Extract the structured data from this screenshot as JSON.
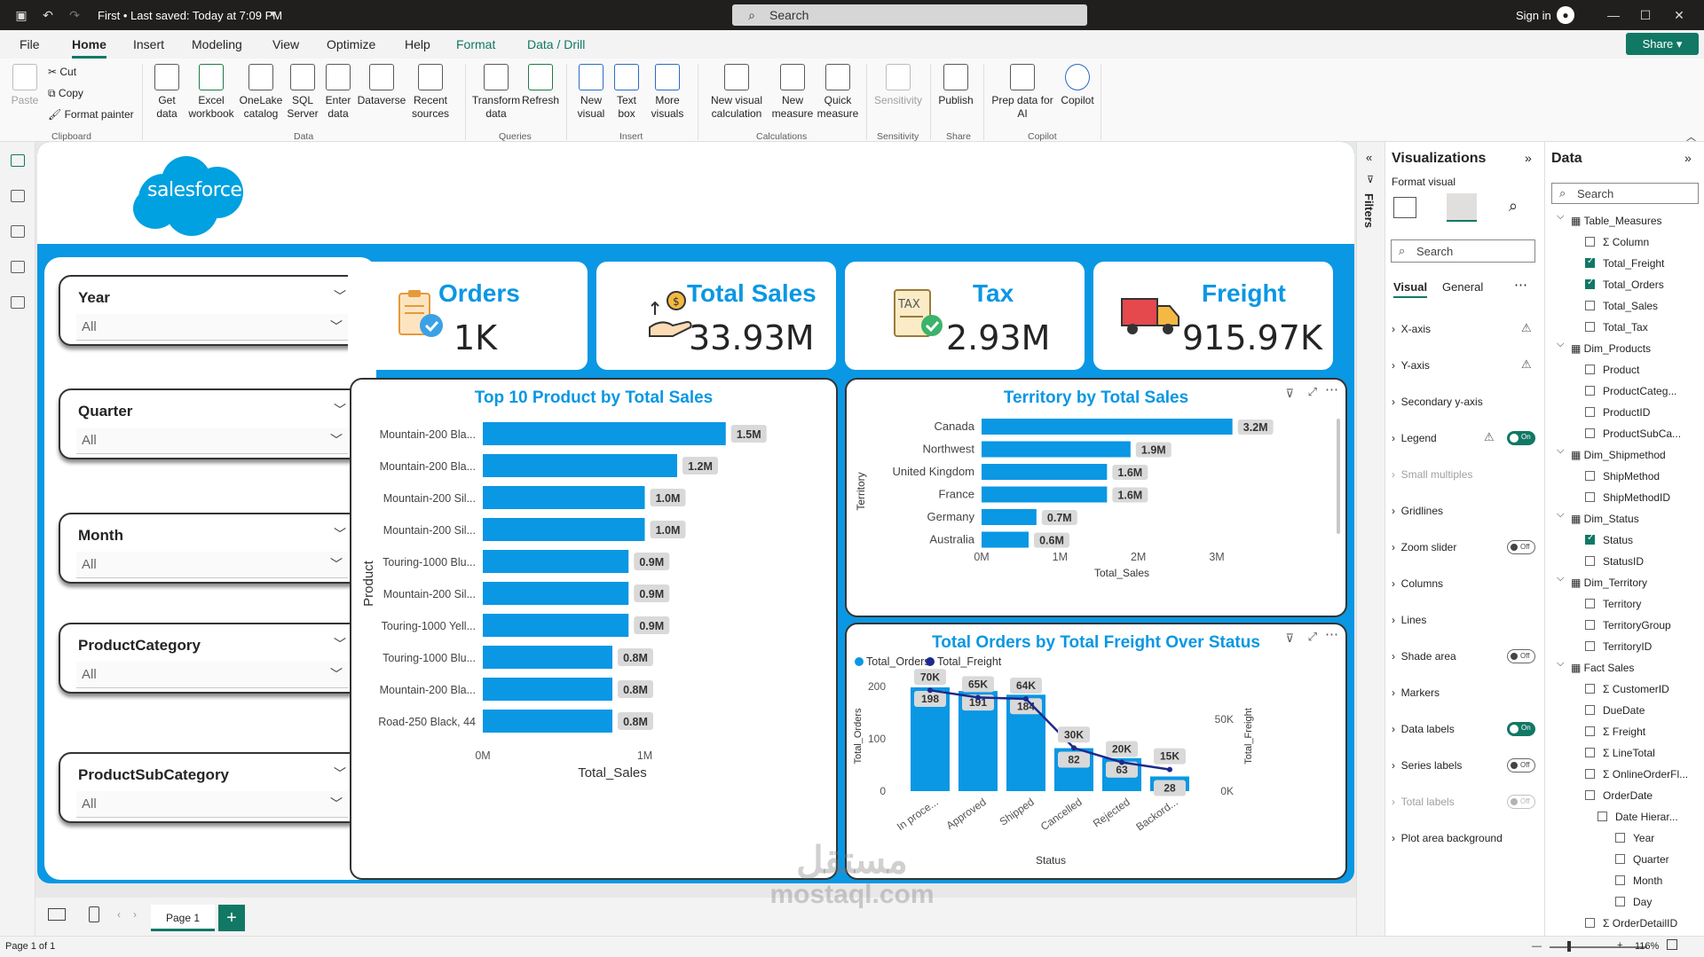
{
  "titlebar": {
    "title": "First • Last saved: Today at 7:09 PM",
    "search_placeholder": "Search",
    "signin": "Sign in"
  },
  "menu": [
    "File",
    "Home",
    "Insert",
    "Modeling",
    "View",
    "Optimize",
    "Help",
    "Format",
    "Data / Drill"
  ],
  "share_label": "Share",
  "ribbon": {
    "clipboard": {
      "paste": "Paste",
      "cut": "Cut",
      "copy": "Copy",
      "format_painter": "Format painter",
      "group": "Clipboard"
    },
    "data": {
      "items": [
        "Get data",
        "Excel workbook",
        "OneLake catalog",
        "SQL Server",
        "Enter data",
        "Dataverse",
        "Recent sources"
      ],
      "group": "Data"
    },
    "queries": {
      "items": [
        "Transform data",
        "Refresh"
      ],
      "group": "Queries"
    },
    "insert": {
      "items": [
        "New visual",
        "Text box",
        "More visuals"
      ],
      "group": "Insert"
    },
    "calculations": {
      "items": [
        "New visual calculation",
        "New measure",
        "Quick measure"
      ],
      "group": "Calculations"
    },
    "sensitivity": {
      "items": [
        "Sensitivity"
      ],
      "group": "Sensitivity"
    },
    "share": {
      "items": [
        "Publish"
      ],
      "group": "Share"
    },
    "copilot": {
      "items": [
        "Prep data for AI",
        "Copilot"
      ],
      "group": "Copilot"
    }
  },
  "report": {
    "logo_text": "salesforce",
    "slicers": [
      {
        "title": "Year",
        "value": "All"
      },
      {
        "title": "Quarter",
        "value": "All"
      },
      {
        "title": "Month",
        "value": "All"
      },
      {
        "title": "ProductCategory",
        "value": "All"
      },
      {
        "title": "ProductSubCategory",
        "value": "All"
      }
    ],
    "kpis": [
      {
        "title": "Orders",
        "value": "1K"
      },
      {
        "title": "Total Sales",
        "value": "33.93M"
      },
      {
        "title": "Tax",
        "value": "2.93M"
      },
      {
        "title": "Freight",
        "value": "915.97K"
      }
    ]
  },
  "chart_data": [
    {
      "type": "bar",
      "title": "Top 10 Product by Total Sales",
      "xlabel": "Total_Sales",
      "ylabel": "Product",
      "categories": [
        "Mountain-200 Bla...",
        "Mountain-200 Bla...",
        "Mountain-200 Sil...",
        "Mountain-200 Sil...",
        "Touring-1000 Blu...",
        "Mountain-200 Sil...",
        "Touring-1000 Yell...",
        "Touring-1000 Blu...",
        "Mountain-200 Bla...",
        "Road-250 Black, 44"
      ],
      "values": [
        1.5,
        1.2,
        1.0,
        1.0,
        0.9,
        0.9,
        0.9,
        0.8,
        0.8,
        0.8
      ],
      "data_labels": [
        "1.5M",
        "1.2M",
        "1.0M",
        "1.0M",
        "0.9M",
        "0.9M",
        "0.9M",
        "0.8M",
        "0.8M",
        "0.8M"
      ],
      "xticks": [
        "0M",
        "1M"
      ],
      "xlim": [
        0,
        1.6
      ]
    },
    {
      "type": "bar",
      "title": "Territory by Total Sales",
      "xlabel": "Total_Sales",
      "ylabel": "Territory",
      "categories": [
        "Canada",
        "Northwest",
        "United Kingdom",
        "France",
        "Germany",
        "Australia"
      ],
      "values": [
        3.2,
        1.9,
        1.6,
        1.6,
        0.7,
        0.6
      ],
      "data_labels": [
        "3.2M",
        "1.9M",
        "1.6M",
        "1.6M",
        "0.7M",
        "0.6M"
      ],
      "xticks": [
        "0M",
        "1M",
        "2M",
        "3M"
      ],
      "xlim": [
        0,
        3.6
      ]
    },
    {
      "type": "bar",
      "title": "Total Orders by Total Freight Over Status",
      "xlabel": "Status",
      "ylabel": "Total_Orders",
      "y2label": "Total_Freight",
      "legend": [
        "Total_Orders",
        "Total_Freight"
      ],
      "categories": [
        "In proce...",
        "Approved",
        "Shipped",
        "Cancelled",
        "Rejected",
        "Backord..."
      ],
      "series": [
        {
          "name": "Total_Orders",
          "values": [
            198,
            191,
            184,
            82,
            63,
            28
          ],
          "labels": [
            "198",
            "191",
            "184",
            "82",
            "63",
            "28"
          ]
        },
        {
          "name": "Total_Freight",
          "values": [
            70000,
            65000,
            64000,
            30000,
            20000,
            15000
          ],
          "labels": [
            "70K",
            "65K",
            "64K",
            "30K",
            "20K",
            "15K"
          ]
        }
      ],
      "yticks": [
        "0",
        "100",
        "200"
      ],
      "y2ticks": [
        "0K",
        "50K"
      ],
      "ylim": [
        0,
        220
      ],
      "y2lim": [
        0,
        80000
      ]
    }
  ],
  "viz_pane": {
    "title": "Visualizations",
    "subtitle": "Format visual",
    "search_placeholder": "Search",
    "tabs": [
      "Visual",
      "General"
    ],
    "rows": [
      {
        "label": "X-axis",
        "warn": true
      },
      {
        "label": "Y-axis",
        "warn": true
      },
      {
        "label": "Secondary y-axis"
      },
      {
        "label": "Legend",
        "toggle": "On",
        "warn": true
      },
      {
        "label": "Small multiples",
        "dim": true
      },
      {
        "label": "Gridlines"
      },
      {
        "label": "Zoom slider",
        "toggle": "Off"
      },
      {
        "label": "Columns"
      },
      {
        "label": "Lines"
      },
      {
        "label": "Shade area",
        "toggle": "Off"
      },
      {
        "label": "Markers"
      },
      {
        "label": "Data labels",
        "toggle": "On"
      },
      {
        "label": "Series labels",
        "toggle": "Off"
      },
      {
        "label": "Total labels",
        "toggle": "Off",
        "dim": true
      },
      {
        "label": "Plot area background"
      }
    ]
  },
  "filters_label": "Filters",
  "data_pane": {
    "title": "Data",
    "search_placeholder": "Search",
    "rows": [
      {
        "label": "Table_Measures",
        "level": 0,
        "table": true
      },
      {
        "label": "Column",
        "level": 1,
        "sigma": true
      },
      {
        "label": "Total_Freight",
        "level": 1,
        "checked": true
      },
      {
        "label": "Total_Orders",
        "level": 1,
        "checked": true
      },
      {
        "label": "Total_Sales",
        "level": 1
      },
      {
        "label": "Total_Tax",
        "level": 1
      },
      {
        "label": "Dim_Products",
        "level": 0,
        "table": true
      },
      {
        "label": "Product",
        "level": 1
      },
      {
        "label": "ProductCateg...",
        "level": 1
      },
      {
        "label": "ProductID",
        "level": 1
      },
      {
        "label": "ProductSubCa...",
        "level": 1
      },
      {
        "label": "Dim_Shipmethod",
        "level": 0,
        "table": true
      },
      {
        "label": "ShipMethod",
        "level": 1
      },
      {
        "label": "ShipMethodID",
        "level": 1
      },
      {
        "label": "Dim_Status",
        "level": 0,
        "table": true
      },
      {
        "label": "Status",
        "level": 1,
        "checked": true
      },
      {
        "label": "StatusID",
        "level": 1
      },
      {
        "label": "Dim_Territory",
        "level": 0,
        "table": true
      },
      {
        "label": "Territory",
        "level": 1
      },
      {
        "label": "TerritoryGroup",
        "level": 1
      },
      {
        "label": "TerritoryID",
        "level": 1
      },
      {
        "label": "Fact Sales",
        "level": 0,
        "table": true
      },
      {
        "label": "CustomerID",
        "level": 1,
        "sigma": true
      },
      {
        "label": "DueDate",
        "level": 1
      },
      {
        "label": "Freight",
        "level": 1,
        "sigma": true
      },
      {
        "label": "LineTotal",
        "level": 1,
        "sigma": true
      },
      {
        "label": "OnlineOrderFl...",
        "level": 1,
        "sigma": true
      },
      {
        "label": "OrderDate",
        "level": 1
      },
      {
        "label": "Date Hierar...",
        "level": 2
      },
      {
        "label": "Year",
        "level": 3
      },
      {
        "label": "Quarter",
        "level": 3
      },
      {
        "label": "Month",
        "level": 3
      },
      {
        "label": "Day",
        "level": 3
      },
      {
        "label": "OrderDetailID",
        "level": 1,
        "sigma": true
      }
    ]
  },
  "pagebar": {
    "page": "Page 1"
  },
  "status": {
    "page": "Page 1 of 1",
    "zoom": "116%"
  },
  "watermark": {
    "arabic": "مستقل",
    "latin": "mostaql.com"
  }
}
